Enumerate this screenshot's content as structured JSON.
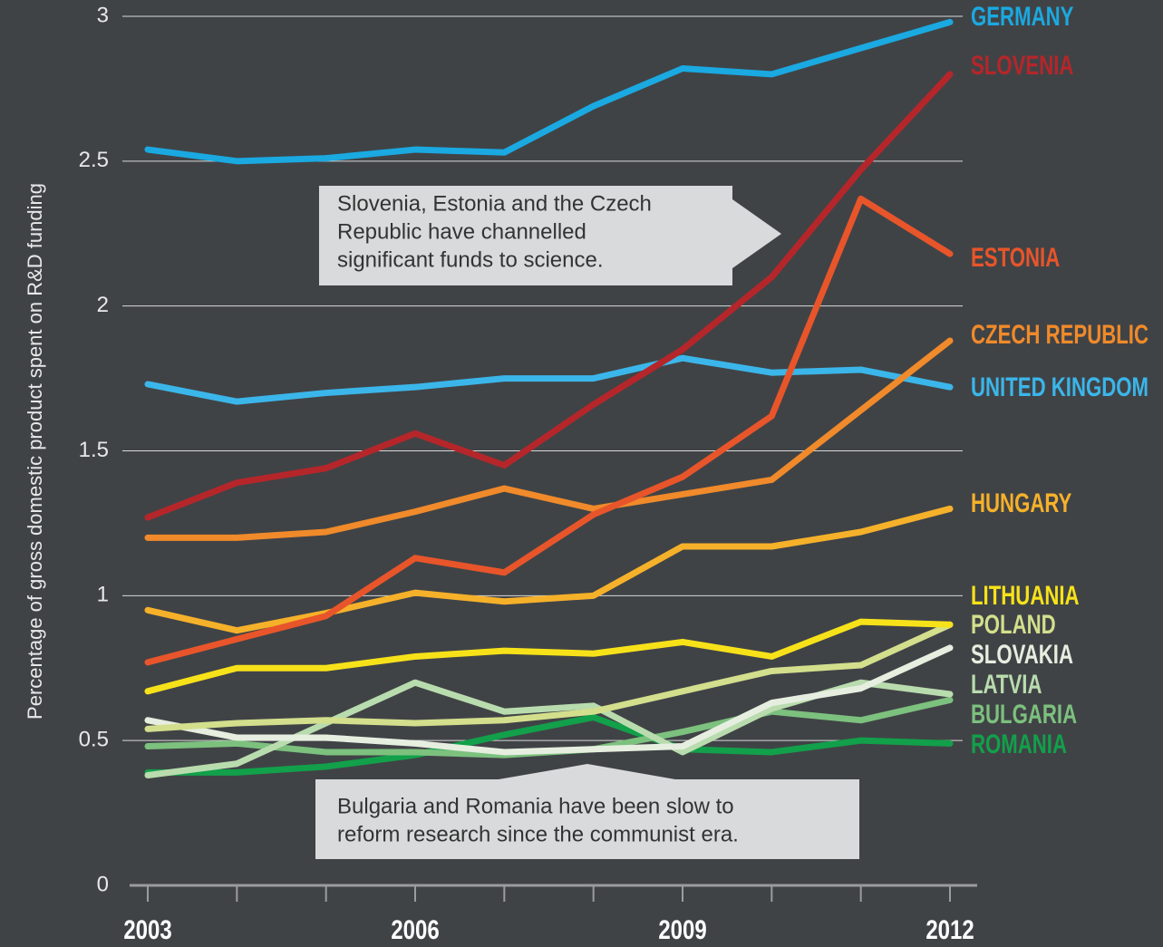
{
  "chart_data": {
    "type": "line",
    "y_label": "Percentage of gross domestic product spent on R&D funding",
    "x": [
      2003,
      2004,
      2005,
      2006,
      2007,
      2008,
      2009,
      2010,
      2011,
      2012
    ],
    "xlim": [
      2003,
      2012
    ],
    "xticks": [
      2003,
      2006,
      2009,
      2012
    ],
    "ylim": [
      0,
      3
    ],
    "yticks": [
      0,
      0.5,
      1,
      1.5,
      2,
      2.5,
      3
    ],
    "grid": true,
    "series": [
      {
        "name": "GERMANY",
        "color": "#1aa9e1",
        "values": [
          2.54,
          2.5,
          2.51,
          2.54,
          2.53,
          2.69,
          2.82,
          2.8,
          2.89,
          2.98
        ]
      },
      {
        "name": "SLOVENIA",
        "color": "#b5262a",
        "values": [
          1.27,
          1.39,
          1.44,
          1.56,
          1.45,
          1.66,
          1.85,
          2.1,
          2.47,
          2.8
        ]
      },
      {
        "name": "ESTONIA",
        "color": "#e8552a",
        "values": [
          0.77,
          0.85,
          0.93,
          1.13,
          1.08,
          1.28,
          1.41,
          1.62,
          2.37,
          2.18
        ]
      },
      {
        "name": "CZECH REPUBLIC",
        "color": "#f08a2a",
        "values": [
          1.2,
          1.2,
          1.22,
          1.29,
          1.37,
          1.3,
          1.35,
          1.4,
          1.64,
          1.88
        ]
      },
      {
        "name": "UNITED KINGDOM",
        "color": "#3bb6ea",
        "values": [
          1.73,
          1.67,
          1.7,
          1.72,
          1.75,
          1.75,
          1.82,
          1.77,
          1.78,
          1.72
        ]
      },
      {
        "name": "HUNGARY",
        "color": "#f6b12a",
        "values": [
          0.95,
          0.88,
          0.94,
          1.01,
          0.98,
          1.0,
          1.17,
          1.17,
          1.22,
          1.3
        ]
      },
      {
        "name": "LITHUANIA",
        "color": "#f7e21a",
        "values": [
          0.67,
          0.75,
          0.75,
          0.79,
          0.81,
          0.8,
          0.84,
          0.79,
          0.91,
          0.9
        ]
      },
      {
        "name": "POLAND",
        "color": "#d3df8c",
        "values": [
          0.54,
          0.56,
          0.57,
          0.56,
          0.57,
          0.6,
          0.67,
          0.74,
          0.76,
          0.9
        ]
      },
      {
        "name": "SLOVAKIA",
        "color": "#e6eee0",
        "values": [
          0.57,
          0.51,
          0.51,
          0.49,
          0.46,
          0.47,
          0.48,
          0.63,
          0.68,
          0.82
        ]
      },
      {
        "name": "LATVIA",
        "color": "#b9dcae",
        "values": [
          0.38,
          0.42,
          0.56,
          0.7,
          0.6,
          0.62,
          0.46,
          0.61,
          0.7,
          0.66
        ]
      },
      {
        "name": "BULGARIA",
        "color": "#7cc17e",
        "values": [
          0.48,
          0.49,
          0.46,
          0.46,
          0.45,
          0.47,
          0.53,
          0.6,
          0.57,
          0.64
        ]
      },
      {
        "name": "ROMANIA",
        "color": "#12a04a",
        "values": [
          0.39,
          0.39,
          0.41,
          0.45,
          0.52,
          0.58,
          0.47,
          0.46,
          0.5,
          0.49
        ]
      }
    ],
    "annotations": [
      [
        "Slovenia, Estonia and the Czech",
        "Republic have channelled",
        "significant funds to science."
      ],
      [
        "Bulgaria and Romania have been slow to",
        "reform research since the communist era."
      ]
    ]
  }
}
